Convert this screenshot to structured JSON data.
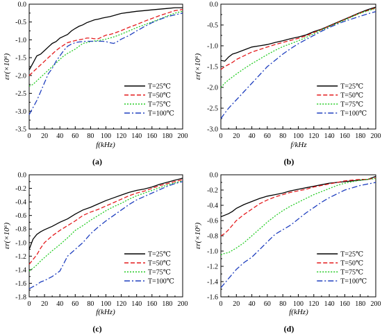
{
  "series_styles": [
    {
      "color": "#000000",
      "dash": ""
    },
    {
      "color": "#e41a1c",
      "dash": "6,3"
    },
    {
      "color": "#22cc22",
      "dash": "2,2"
    },
    {
      "color": "#1f3fbf",
      "dash": "8,3,2,3"
    }
  ],
  "chart_data": [
    {
      "type": "line",
      "panel_label": "(a)",
      "xlabel": "f(kHz)",
      "ylabel": "εr(×10⁶)",
      "xlim": [
        0,
        200
      ],
      "ylim": [
        -3.5,
        0
      ],
      "xticks": [
        "0",
        "20",
        "40",
        "60",
        "80",
        "100",
        "120",
        "140",
        "160",
        "180",
        "200"
      ],
      "yticks": [
        "-3.5",
        "-3.0",
        "-2.5",
        "-2.0",
        "-1.5",
        "-1.0",
        "-0.5",
        "0.0"
      ],
      "legend_position": "bottom-right",
      "x": [
        0,
        5,
        10,
        15,
        20,
        25,
        30,
        35,
        40,
        45,
        50,
        55,
        60,
        65,
        70,
        75,
        80,
        85,
        90,
        95,
        100,
        105,
        110,
        115,
        120,
        130,
        140,
        150,
        160,
        170,
        180,
        190,
        200
      ],
      "series": [
        {
          "name": "T=25℃",
          "values": [
            -1.85,
            -1.65,
            -1.45,
            -1.4,
            -1.3,
            -1.2,
            -1.1,
            -1.05,
            -0.95,
            -0.9,
            -0.85,
            -0.75,
            -0.68,
            -0.62,
            -0.58,
            -0.52,
            -0.48,
            -0.44,
            -0.42,
            -0.39,
            -0.37,
            -0.35,
            -0.32,
            -0.29,
            -0.26,
            -0.23,
            -0.2,
            -0.18,
            -0.16,
            -0.14,
            -0.12,
            -0.1,
            -0.1
          ]
        },
        {
          "name": "T=50℃",
          "values": [
            -2.0,
            -1.9,
            -1.8,
            -1.7,
            -1.6,
            -1.5,
            -1.4,
            -1.3,
            -1.22,
            -1.15,
            -1.08,
            -1.05,
            -1.02,
            -1.0,
            -0.98,
            -0.95,
            -0.95,
            -0.97,
            -0.97,
            -0.92,
            -0.87,
            -0.85,
            -0.82,
            -0.78,
            -0.74,
            -0.65,
            -0.57,
            -0.48,
            -0.4,
            -0.32,
            -0.25,
            -0.18,
            -0.15
          ]
        },
        {
          "name": "T=75℃",
          "values": [
            -2.3,
            -2.25,
            -2.15,
            -2.05,
            -1.95,
            -1.85,
            -1.75,
            -1.65,
            -1.55,
            -1.45,
            -1.38,
            -1.32,
            -1.26,
            -1.18,
            -1.1,
            -1.08,
            -1.05,
            -1.03,
            -1.02,
            -1.0,
            -0.98,
            -0.95,
            -0.92,
            -0.88,
            -0.84,
            -0.75,
            -0.66,
            -0.58,
            -0.5,
            -0.42,
            -0.33,
            -0.25,
            -0.2
          ]
        },
        {
          "name": "T=100℃",
          "values": [
            -3.1,
            -2.9,
            -2.7,
            -2.45,
            -2.2,
            -1.95,
            -1.8,
            -1.6,
            -1.45,
            -1.3,
            -1.18,
            -1.12,
            -1.08,
            -1.06,
            -1.05,
            -1.04,
            -1.04,
            -1.04,
            -1.04,
            -1.04,
            -1.05,
            -1.08,
            -1.1,
            -1.05,
            -0.98,
            -0.88,
            -0.75,
            -0.63,
            -0.52,
            -0.43,
            -0.35,
            -0.3,
            -0.25
          ]
        }
      ]
    },
    {
      "type": "line",
      "panel_label": "(b)",
      "xlabel": "f/kHz",
      "ylabel": "εr(×10⁶)",
      "xlim": [
        0,
        200
      ],
      "ylim": [
        -3.0,
        0
      ],
      "xticks": [
        "0",
        "20",
        "40",
        "60",
        "80",
        "100",
        "120",
        "140",
        "160",
        "180",
        "200"
      ],
      "yticks": [
        "-3.0",
        "-2.5",
        "-2.0",
        "-1.5",
        "-1.0",
        "-0.5",
        "0.0"
      ],
      "legend_position": "bottom-right",
      "x": [
        0,
        5,
        10,
        15,
        20,
        30,
        40,
        50,
        60,
        70,
        80,
        90,
        100,
        110,
        120,
        130,
        140,
        150,
        160,
        170,
        180,
        190,
        200
      ],
      "series": [
        {
          "name": "T=25℃",
          "values": [
            -1.35,
            -1.37,
            -1.27,
            -1.2,
            -1.17,
            -1.1,
            -1.03,
            -1.0,
            -0.97,
            -0.92,
            -0.88,
            -0.83,
            -0.79,
            -0.74,
            -0.66,
            -0.6,
            -0.52,
            -0.44,
            -0.36,
            -0.28,
            -0.2,
            -0.13,
            -0.07
          ]
        },
        {
          "name": "T=50℃",
          "values": [
            -1.57,
            -1.5,
            -1.45,
            -1.4,
            -1.33,
            -1.24,
            -1.15,
            -1.09,
            -1.03,
            -0.97,
            -0.92,
            -0.87,
            -0.82,
            -0.76,
            -0.68,
            -0.61,
            -0.53,
            -0.45,
            -0.37,
            -0.29,
            -0.21,
            -0.15,
            -0.09
          ]
        },
        {
          "name": "T=75℃",
          "values": [
            -2.0,
            -1.9,
            -1.82,
            -1.75,
            -1.68,
            -1.55,
            -1.43,
            -1.32,
            -1.21,
            -1.11,
            -1.02,
            -0.95,
            -0.88,
            -0.8,
            -0.71,
            -0.62,
            -0.54,
            -0.46,
            -0.38,
            -0.3,
            -0.22,
            -0.16,
            -0.1
          ]
        },
        {
          "name": "T=100℃",
          "values": [
            -2.75,
            -2.62,
            -2.5,
            -2.4,
            -2.3,
            -2.1,
            -1.9,
            -1.7,
            -1.5,
            -1.35,
            -1.2,
            -1.07,
            -0.95,
            -0.85,
            -0.75,
            -0.65,
            -0.56,
            -0.48,
            -0.41,
            -0.35,
            -0.29,
            -0.23,
            -0.18
          ]
        }
      ]
    },
    {
      "type": "line",
      "panel_label": "(c)",
      "xlabel": "f(kHz)",
      "ylabel": "εr(×10⁶)",
      "xlim": [
        0,
        200
      ],
      "ylim": [
        -1.8,
        0
      ],
      "xticks": [
        "0",
        "20",
        "40",
        "60",
        "80",
        "100",
        "120",
        "140",
        "160",
        "180",
        "200"
      ],
      "yticks": [
        "-1.8",
        "-1.6",
        "-1.4",
        "-1.2",
        "-1.0",
        "-0.8",
        "-0.6",
        "-0.4",
        "-0.2",
        "0.0"
      ],
      "legend_position": "bottom-right",
      "x": [
        0,
        5,
        10,
        15,
        20,
        30,
        40,
        50,
        60,
        70,
        80,
        90,
        100,
        110,
        120,
        130,
        140,
        150,
        160,
        170,
        180,
        190,
        200
      ],
      "series": [
        {
          "name": "T=25℃",
          "values": [
            -1.1,
            -0.95,
            -0.88,
            -0.84,
            -0.81,
            -0.76,
            -0.7,
            -0.65,
            -0.58,
            -0.52,
            -0.48,
            -0.43,
            -0.38,
            -0.34,
            -0.3,
            -0.26,
            -0.23,
            -0.21,
            -0.18,
            -0.14,
            -0.11,
            -0.08,
            -0.05
          ]
        },
        {
          "name": "T=50℃",
          "values": [
            -1.32,
            -1.25,
            -1.18,
            -1.08,
            -1.0,
            -0.9,
            -0.82,
            -0.75,
            -0.68,
            -0.6,
            -0.55,
            -0.51,
            -0.46,
            -0.41,
            -0.36,
            -0.31,
            -0.27,
            -0.24,
            -0.2,
            -0.16,
            -0.13,
            -0.1,
            -0.07
          ]
        },
        {
          "name": "T=75℃",
          "values": [
            -1.42,
            -1.38,
            -1.33,
            -1.27,
            -1.22,
            -1.12,
            -1.03,
            -0.93,
            -0.82,
            -0.75,
            -0.67,
            -0.6,
            -0.53,
            -0.47,
            -0.42,
            -0.36,
            -0.31,
            -0.27,
            -0.23,
            -0.19,
            -0.15,
            -0.12,
            -0.09
          ]
        },
        {
          "name": "T=100℃",
          "values": [
            -1.68,
            -1.65,
            -1.62,
            -1.58,
            -1.56,
            -1.5,
            -1.42,
            -1.2,
            -1.1,
            -1.0,
            -0.87,
            -0.77,
            -0.68,
            -0.6,
            -0.52,
            -0.44,
            -0.37,
            -0.32,
            -0.27,
            -0.22,
            -0.17,
            -0.13,
            -0.1
          ]
        }
      ]
    },
    {
      "type": "line",
      "panel_label": "(d)",
      "xlabel": "f(kHz)",
      "ylabel": "εr(×10⁶)",
      "xlim": [
        0,
        200
      ],
      "ylim": [
        -1.6,
        0
      ],
      "xticks": [
        "0",
        "20",
        "40",
        "60",
        "80",
        "100",
        "120",
        "140",
        "160",
        "180",
        "200"
      ],
      "yticks": [
        "-1.6",
        "-1.4",
        "-1.2",
        "-1.0",
        "-0.8",
        "-0.6",
        "-0.4",
        "-0.2",
        "0.0"
      ],
      "legend_position": "bottom-right",
      "x": [
        0,
        5,
        10,
        15,
        20,
        30,
        40,
        50,
        60,
        70,
        80,
        90,
        100,
        110,
        120,
        130,
        140,
        150,
        160,
        170,
        180,
        190,
        200
      ],
      "series": [
        {
          "name": "T=25℃",
          "values": [
            -0.55,
            -0.53,
            -0.51,
            -0.48,
            -0.44,
            -0.39,
            -0.35,
            -0.31,
            -0.28,
            -0.26,
            -0.24,
            -0.21,
            -0.19,
            -0.17,
            -0.15,
            -0.13,
            -0.11,
            -0.1,
            -0.09,
            -0.08,
            -0.07,
            -0.06,
            -0.02
          ]
        },
        {
          "name": "T=50℃",
          "values": [
            -0.8,
            -0.77,
            -0.72,
            -0.66,
            -0.6,
            -0.52,
            -0.45,
            -0.38,
            -0.33,
            -0.29,
            -0.26,
            -0.23,
            -0.21,
            -0.19,
            -0.16,
            -0.14,
            -0.12,
            -0.1,
            -0.08,
            -0.07,
            -0.06,
            -0.06,
            -0.04
          ]
        },
        {
          "name": "T=75℃",
          "values": [
            -1.05,
            -1.03,
            -1.02,
            -0.99,
            -0.96,
            -0.89,
            -0.8,
            -0.71,
            -0.62,
            -0.54,
            -0.47,
            -0.41,
            -0.36,
            -0.31,
            -0.26,
            -0.22,
            -0.18,
            -0.14,
            -0.11,
            -0.09,
            -0.07,
            -0.06,
            -0.05
          ]
        },
        {
          "name": "T=100℃",
          "values": [
            -1.48,
            -1.42,
            -1.36,
            -1.3,
            -1.24,
            -1.15,
            -1.08,
            -0.98,
            -0.88,
            -0.78,
            -0.72,
            -0.66,
            -0.58,
            -0.5,
            -0.43,
            -0.36,
            -0.3,
            -0.25,
            -0.2,
            -0.17,
            -0.14,
            -0.12,
            -0.1
          ]
        }
      ]
    }
  ]
}
